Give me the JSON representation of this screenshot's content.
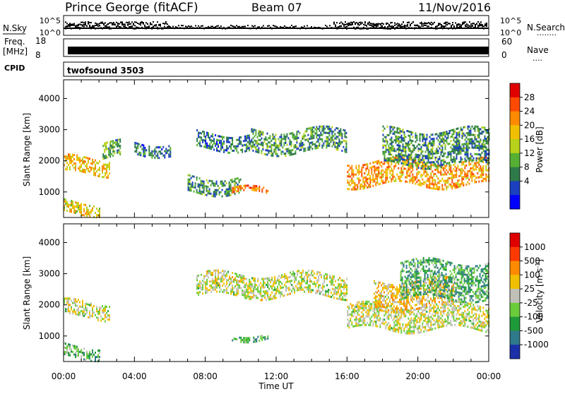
{
  "header": {
    "station": "Prince George (fitACF)",
    "beam": "Beam 07",
    "date": "11/Nov/2016"
  },
  "noise_panel": {
    "left_label": "N.Sky",
    "right_label": "N.Search",
    "left_ticks": [
      "10^5",
      "10^0"
    ],
    "right_ticks": [
      "10^5",
      "10^0"
    ],
    "right_legend_line": "........"
  },
  "freq_panel": {
    "left_label_line1": "Freq.",
    "left_label_line2": "[MHz]",
    "left_ticks": [
      "18",
      "8"
    ],
    "right_label": "Nave",
    "right_ticks": [
      "60",
      "0"
    ],
    "right_legend_line": "...."
  },
  "cpid_panel": {
    "label": "CPID",
    "program": "twofsound 3503"
  },
  "axes": {
    "ylabel": "Slant Range [km]",
    "xlabel": "Time UT",
    "yticks": [
      "4000",
      "3000",
      "2000",
      "1000"
    ],
    "xticks": [
      "00:00",
      "04:00",
      "08:00",
      "12:00",
      "16:00",
      "20:00",
      "00:00"
    ]
  },
  "power_colorbar": {
    "label": "Power [dB]",
    "ticks": [
      "28",
      "24",
      "20",
      "16",
      "12",
      "8",
      "4"
    ],
    "colors": [
      "#0000ff",
      "#1a3fbf",
      "#2e7a4a",
      "#55b033",
      "#b8d11a",
      "#f0c000",
      "#ff8a00",
      "#ff4a00",
      "#e00000"
    ]
  },
  "velocity_colorbar": {
    "label": "Velocity",
    "unit_prefix": "[m s",
    "unit_exp": "-1",
    "unit_suffix": "]",
    "ticks": [
      "1000",
      "500",
      "100",
      "25",
      "-25",
      "-100",
      "-500",
      "-1000"
    ],
    "colors": [
      "#1a2fa8",
      "#2f7a8a",
      "#1f9a3a",
      "#6acc3a",
      "#c0c0b8",
      "#f0c000",
      "#ff8a00",
      "#ff3a00",
      "#e00000"
    ]
  },
  "chart_data": {
    "type": "heatmap",
    "title": "Prince George (fitACF)",
    "xlabel": "Time UT",
    "ylabel": "Slant Range [km]",
    "x_range": [
      "00:00",
      "24:00"
    ],
    "ylim": [
      180,
      4600
    ],
    "series": [
      {
        "name": "Power [dB]",
        "cbar_range": [
          0,
          32
        ],
        "echo_bands": [
          {
            "t_start": 0.0,
            "t_end": 2.6,
            "range_km": [
              1600,
              2100
            ],
            "value": 20
          },
          {
            "t_start": 0.0,
            "t_end": 2.0,
            "range_km": [
              300,
              700
            ],
            "value": 18
          },
          {
            "t_start": 2.2,
            "t_end": 3.2,
            "range_km": [
              2100,
              2600
            ],
            "value": 12
          },
          {
            "t_start": 4.0,
            "t_end": 6.0,
            "range_km": [
              2200,
              2600
            ],
            "value": 8
          },
          {
            "t_start": 7.5,
            "t_end": 10.5,
            "range_km": [
              2400,
              2900
            ],
            "value": 8
          },
          {
            "t_start": 7.0,
            "t_end": 10.0,
            "range_km": [
              1000,
              1500
            ],
            "value": 10
          },
          {
            "t_start": 9.5,
            "t_end": 11.5,
            "range_km": [
              900,
              1100
            ],
            "value": 24
          },
          {
            "t_start": 10.5,
            "t_end": 16.0,
            "range_km": [
              2300,
              3000
            ],
            "value": 10
          },
          {
            "t_start": 16.0,
            "t_end": 24.0,
            "range_km": [
              1200,
              2000
            ],
            "value": 22
          },
          {
            "t_start": 18.0,
            "t_end": 24.0,
            "range_km": [
              1900,
              3000
            ],
            "value": 10
          }
        ]
      },
      {
        "name": "Velocity [m s-1]",
        "cbar_range": [
          -1000,
          1000
        ],
        "echo_bands": [
          {
            "t_start": 0.0,
            "t_end": 2.6,
            "range_km": [
              1600,
              2100
            ],
            "value": 0
          },
          {
            "t_start": 0.0,
            "t_end": 2.0,
            "range_km": [
              300,
              700
            ],
            "value": -300
          },
          {
            "t_start": 7.5,
            "t_end": 16.0,
            "range_km": [
              2300,
              3000
            ],
            "value": 0
          },
          {
            "t_start": 9.5,
            "t_end": 11.5,
            "range_km": [
              900,
              1100
            ],
            "value": -400
          },
          {
            "t_start": 16.0,
            "t_end": 24.0,
            "range_km": [
              1200,
              2000
            ],
            "value": 0
          },
          {
            "t_start": 17.5,
            "t_end": 22.0,
            "range_km": [
              1900,
              2800
            ],
            "value": 200
          },
          {
            "t_start": 19.0,
            "t_end": 24.0,
            "range_km": [
              2200,
              3400
            ],
            "value": -400
          }
        ]
      }
    ]
  }
}
